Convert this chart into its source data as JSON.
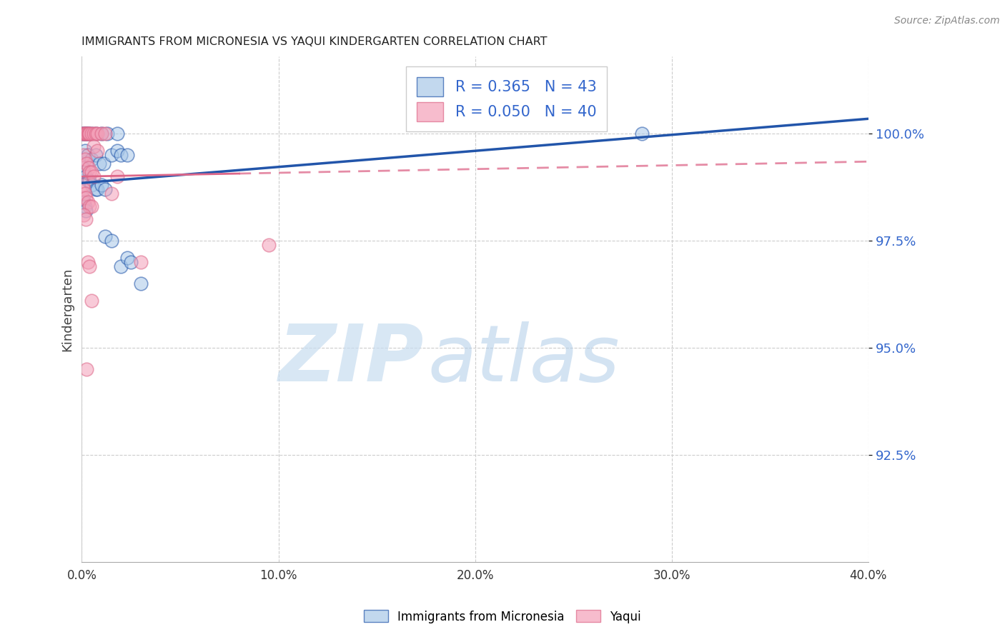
{
  "title": "IMMIGRANTS FROM MICRONESIA VS YAQUI KINDERGARTEN CORRELATION CHART",
  "source": "Source: ZipAtlas.com",
  "ylabel": "Kindergarten",
  "legend_label_blue": "Immigrants from Micronesia",
  "legend_label_pink": "Yaqui",
  "R_blue": 0.365,
  "N_blue": 43,
  "R_pink": 0.05,
  "N_pink": 40,
  "x_min": 0.0,
  "x_max": 40.0,
  "y_min": 90.0,
  "y_max": 101.8,
  "y_ticks": [
    92.5,
    95.0,
    97.5,
    100.0
  ],
  "x_ticks": [
    0.0,
    10.0,
    20.0,
    30.0,
    40.0
  ],
  "color_blue": "#a8c8e8",
  "color_pink": "#f4a0b8",
  "trend_blue_color": "#2255aa",
  "trend_pink_color": "#dd6688",
  "watermark_zip": "ZIP",
  "watermark_atlas": "atlas",
  "blue_trend_x": [
    0.0,
    40.0
  ],
  "blue_trend_y": [
    98.85,
    100.35
  ],
  "pink_trend_x0": 0.0,
  "pink_trend_y0": 99.0,
  "pink_trend_x1": 40.0,
  "pink_trend_y1": 99.35,
  "pink_solid_end": 8.0,
  "blue_dots": [
    [
      0.05,
      100.0
    ],
    [
      0.1,
      100.0
    ],
    [
      0.15,
      100.0
    ],
    [
      0.2,
      100.0
    ],
    [
      0.25,
      100.0
    ],
    [
      0.3,
      100.0
    ],
    [
      0.35,
      100.0
    ],
    [
      0.5,
      100.0
    ],
    [
      0.7,
      100.0
    ],
    [
      1.0,
      100.0
    ],
    [
      1.3,
      100.0
    ],
    [
      1.8,
      100.0
    ],
    [
      0.15,
      99.6
    ],
    [
      0.3,
      99.5
    ],
    [
      0.5,
      99.4
    ],
    [
      0.7,
      99.5
    ],
    [
      0.9,
      99.3
    ],
    [
      1.1,
      99.3
    ],
    [
      1.5,
      99.5
    ],
    [
      1.8,
      99.6
    ],
    [
      2.0,
      99.5
    ],
    [
      2.3,
      99.5
    ],
    [
      0.05,
      99.2
    ],
    [
      0.1,
      99.1
    ],
    [
      0.2,
      99.0
    ],
    [
      0.3,
      98.9
    ],
    [
      0.4,
      98.9
    ],
    [
      0.5,
      98.8
    ],
    [
      0.7,
      98.7
    ],
    [
      0.8,
      98.7
    ],
    [
      1.0,
      98.8
    ],
    [
      1.2,
      98.7
    ],
    [
      0.05,
      98.5
    ],
    [
      0.1,
      98.4
    ],
    [
      0.15,
      98.3
    ],
    [
      0.2,
      98.2
    ],
    [
      1.2,
      97.6
    ],
    [
      1.5,
      97.5
    ],
    [
      2.0,
      96.9
    ],
    [
      28.5,
      100.0
    ],
    [
      3.0,
      96.5
    ],
    [
      2.3,
      97.1
    ],
    [
      2.5,
      97.0
    ]
  ],
  "pink_dots": [
    [
      0.05,
      100.0
    ],
    [
      0.1,
      100.0
    ],
    [
      0.15,
      100.0
    ],
    [
      0.2,
      100.0
    ],
    [
      0.25,
      100.0
    ],
    [
      0.3,
      100.0
    ],
    [
      0.35,
      100.0
    ],
    [
      0.4,
      100.0
    ],
    [
      0.5,
      100.0
    ],
    [
      0.6,
      100.0
    ],
    [
      0.7,
      100.0
    ],
    [
      0.8,
      100.0
    ],
    [
      1.0,
      100.0
    ],
    [
      1.2,
      100.0
    ],
    [
      0.1,
      99.5
    ],
    [
      0.15,
      99.4
    ],
    [
      0.25,
      99.3
    ],
    [
      0.35,
      99.2
    ],
    [
      0.4,
      99.1
    ],
    [
      0.5,
      99.1
    ],
    [
      0.6,
      99.0
    ],
    [
      0.05,
      98.8
    ],
    [
      0.1,
      98.7
    ],
    [
      0.15,
      98.6
    ],
    [
      0.2,
      98.5
    ],
    [
      0.3,
      98.4
    ],
    [
      0.4,
      98.3
    ],
    [
      0.5,
      98.3
    ],
    [
      0.1,
      98.1
    ],
    [
      0.2,
      98.0
    ],
    [
      1.8,
      99.0
    ],
    [
      9.5,
      97.4
    ],
    [
      3.0,
      97.0
    ],
    [
      0.3,
      97.0
    ],
    [
      0.4,
      96.9
    ],
    [
      0.5,
      96.1
    ],
    [
      0.25,
      94.5
    ],
    [
      1.5,
      98.6
    ],
    [
      0.6,
      99.7
    ],
    [
      0.8,
      99.6
    ]
  ]
}
